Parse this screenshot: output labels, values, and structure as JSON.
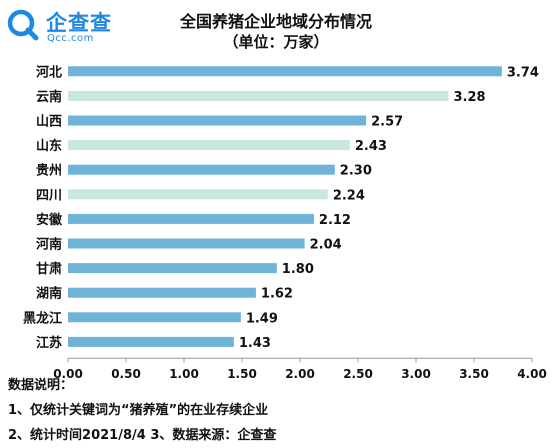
{
  "brand": {
    "name": "企查查",
    "domain": "Qcc.com",
    "color": "#1e88e5"
  },
  "chart_data": {
    "type": "bar",
    "orientation": "horizontal",
    "title": "全国养猪企业地域分布情况",
    "subtitle": "（单位：万家）",
    "categories": [
      "河北",
      "云南",
      "山西",
      "山东",
      "贵州",
      "四川",
      "安徽",
      "河南",
      "甘肃",
      "湖南",
      "黑龙江",
      "江苏"
    ],
    "values": [
      3.74,
      3.28,
      2.57,
      2.43,
      2.3,
      2.24,
      2.12,
      2.04,
      1.8,
      1.62,
      1.49,
      1.43
    ],
    "value_labels": [
      "3.74",
      "3.28",
      "2.57",
      "2.43",
      "2.30",
      "2.24",
      "2.12",
      "2.04",
      "1.80",
      "1.62",
      "1.49",
      "1.43"
    ],
    "bar_colors": [
      "#6fb3d8",
      "#c8e8de",
      "#6fb3d8",
      "#c8e8de",
      "#6fb3d8",
      "#c8e8de",
      "#6fb3d8",
      "#6fb3d8",
      "#6fb3d8",
      "#6fb3d8",
      "#6fb3d8",
      "#6fb3d8"
    ],
    "xlim": [
      0,
      4
    ],
    "xticks": [
      "0.00",
      "0.50",
      "1.00",
      "1.50",
      "2.00",
      "2.50",
      "3.00",
      "3.50",
      "4.00"
    ],
    "grid": false,
    "legend": "none"
  },
  "notes": {
    "heading": "数据说明：",
    "line1": "1、仅统计关键词为“猪养殖”的在业存续企业",
    "line2": "2、统计时间2021/8/4    3、数据来源：企查查"
  }
}
